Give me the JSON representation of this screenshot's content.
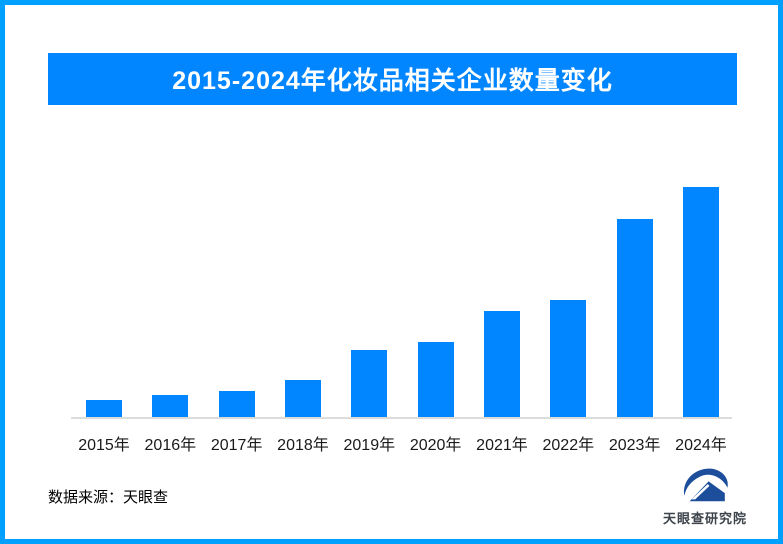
{
  "page": {
    "border_color": "#00a0ff",
    "background_color": "#ffffff"
  },
  "banner": {
    "title": "2015-2024年化妆品相关企业数量变化",
    "background_color": "#0286ff",
    "text_color": "#ffffff"
  },
  "chart_data": {
    "type": "bar",
    "title": "2015-2024年化妆品相关企业数量变化",
    "categories": [
      "2015年",
      "2016年",
      "2017年",
      "2018年",
      "2019年",
      "2020年",
      "2021年",
      "2022年",
      "2023年",
      "2024年"
    ],
    "values": [
      7.2,
      9.6,
      11.3,
      16.1,
      29.3,
      32.6,
      46.3,
      50.7,
      86.1,
      100
    ],
    "value_units": "relative bar height, % of tallest bar (chart shows no y-axis, gridlines or data labels)",
    "xlabel": "",
    "ylabel": "",
    "ylim": [
      0,
      100
    ],
    "grid": false,
    "legend": false,
    "bar_color": "#0286ff",
    "baseline_color": "#dcdcdc"
  },
  "footer": {
    "source_label": "数据来源：天眼查",
    "brand_name": "天眼查研究院",
    "brand_logo_icon": "tianyancha-swoosh-house-icon",
    "brand_color": "#1d4e9b"
  }
}
